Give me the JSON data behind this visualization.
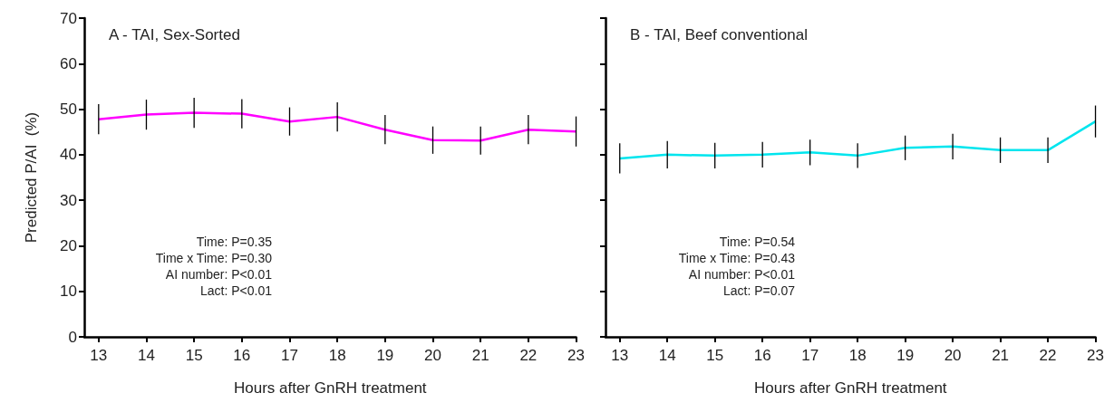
{
  "chart_data": [
    {
      "type": "line",
      "title": "A - TAI, Sex-Sorted",
      "xlabel": "Hours after GnRH treatment",
      "ylabel": "Predicted P/AI  (%)",
      "x": [
        13,
        14,
        15,
        16,
        17,
        18,
        19,
        20,
        21,
        22,
        23
      ],
      "series": [
        {
          "color": "#ff00ff",
          "values": [
            47.8,
            48.8,
            49.2,
            49.0,
            47.3,
            48.3,
            45.5,
            43.2,
            43.1,
            45.5,
            45.1
          ],
          "errors": [
            3.3,
            3.3,
            3.3,
            3.2,
            3.1,
            3.2,
            3.2,
            3.0,
            3.1,
            3.2,
            3.3
          ]
        }
      ],
      "xlim": [
        12.7,
        23
      ],
      "ylim": [
        0,
        70
      ],
      "xticks": [
        13,
        14,
        15,
        16,
        17,
        18,
        19,
        20,
        21,
        22,
        23
      ],
      "yticks": [
        0,
        10,
        20,
        30,
        40,
        50,
        60,
        70
      ],
      "annotations": [
        "Time: P=0.35",
        "Time x Time: P=0.30",
        "AI number: P<0.01",
        "Lact: P<0.01"
      ],
      "grid": false,
      "marker": "none",
      "line_style": "solid"
    },
    {
      "type": "line",
      "title": "B - TAI, Beef conventional",
      "xlabel": "Hours after GnRH treatment",
      "x": [
        13,
        14,
        15,
        16,
        17,
        18,
        19,
        20,
        21,
        22,
        23
      ],
      "series": [
        {
          "color": "#00e5ee",
          "values": [
            39.2,
            40.0,
            39.8,
            40.0,
            40.5,
            39.8,
            41.5,
            41.8,
            41.0,
            41.0,
            47.3
          ],
          "errors": [
            3.3,
            3.0,
            2.8,
            2.8,
            2.8,
            2.7,
            2.7,
            2.8,
            2.8,
            2.8,
            3.5
          ]
        }
      ],
      "xlim": [
        12.7,
        23
      ],
      "ylim": [
        0,
        70
      ],
      "xticks": [
        13,
        14,
        15,
        16,
        17,
        18,
        19,
        20,
        21,
        22,
        23
      ],
      "yticks": [
        0,
        10,
        20,
        30,
        40,
        50,
        60,
        70
      ],
      "annotations": [
        "Time: P=0.54",
        "Time x Time: P=0.43",
        "AI number: P<0.01",
        "Lact: P=0.07"
      ],
      "grid": false,
      "marker": "none",
      "line_style": "solid",
      "tick_labels": "x"
    }
  ]
}
